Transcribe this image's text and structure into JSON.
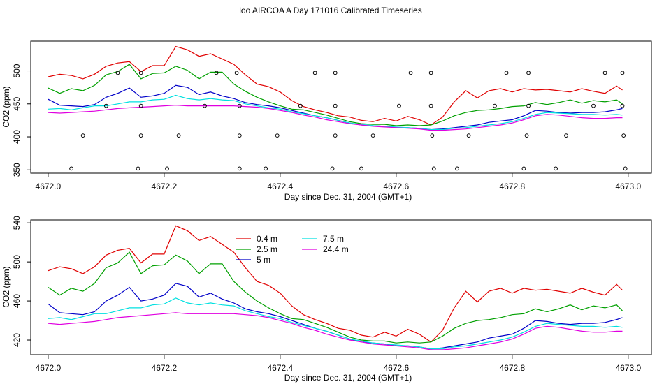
{
  "figure": {
    "title": "loo AIRCOA A  Day 171016  Calibrated Timeseries"
  },
  "colors": {
    "0.4 m": "#e00000",
    "2.5 m": "#00a000",
    "5 m": "#0000c8",
    "7.5 m": "#00e0e0",
    "24.4 m": "#e000e0",
    "markers": "#000000"
  },
  "chart_data": [
    {
      "type": "line",
      "xlabel": "Day since Dec. 31, 2004 (GMT+1)",
      "ylabel": "CO2 (ppm)",
      "xlim": [
        4671.97,
        4673.04
      ],
      "ylim": [
        345,
        545
      ],
      "xticks": [
        4672.0,
        4672.2,
        4672.4,
        4672.6,
        4672.8,
        4673.0
      ],
      "xtick_labels": [
        "4672.0",
        "4672.2",
        "4672.4",
        "4672.6",
        "4672.8",
        "4673.0"
      ],
      "yticks": [
        350,
        400,
        450,
        500
      ],
      "ytick_labels": [
        "350",
        "400",
        "450",
        "500"
      ],
      "legend": "none",
      "markers": {
        "name": "open circles",
        "points": [
          [
            4672.04,
            352
          ],
          [
            4672.06,
            402
          ],
          [
            4672.1,
            447
          ],
          [
            4672.12,
            497
          ],
          [
            4672.155,
            352
          ],
          [
            4672.16,
            402
          ],
          [
            4672.16,
            447
          ],
          [
            4672.16,
            497
          ],
          [
            4672.205,
            352
          ],
          [
            4672.225,
            402
          ],
          [
            4672.27,
            447
          ],
          [
            4672.29,
            497
          ],
          [
            4672.325,
            497
          ],
          [
            4672.33,
            352
          ],
          [
            4672.33,
            402
          ],
          [
            4672.33,
            447
          ],
          [
            4672.375,
            352
          ],
          [
            4672.395,
            402
          ],
          [
            4672.435,
            447
          ],
          [
            4672.46,
            497
          ],
          [
            4672.49,
            352
          ],
          [
            4672.495,
            402
          ],
          [
            4672.495,
            447
          ],
          [
            4672.495,
            497
          ],
          [
            4672.54,
            352
          ],
          [
            4672.56,
            402
          ],
          [
            4672.605,
            447
          ],
          [
            4672.625,
            497
          ],
          [
            4672.66,
            497
          ],
          [
            4672.66,
            447
          ],
          [
            4672.662,
            402
          ],
          [
            4672.665,
            352
          ],
          [
            4672.705,
            352
          ],
          [
            4672.725,
            402
          ],
          [
            4672.77,
            447
          ],
          [
            4672.79,
            497
          ],
          [
            4672.82,
            352
          ],
          [
            4672.825,
            402
          ],
          [
            4672.828,
            447
          ],
          [
            4672.828,
            497
          ],
          [
            4672.875,
            352
          ],
          [
            4672.893,
            402
          ],
          [
            4672.94,
            447
          ],
          [
            4672.96,
            497
          ],
          [
            4672.99,
            497
          ],
          [
            4672.99,
            447
          ],
          [
            4672.992,
            402
          ],
          [
            4672.995,
            352
          ]
        ]
      }
    },
    {
      "type": "line",
      "xlabel": "Day since Dec. 31, 2004 (GMT+1)",
      "ylabel": "CO2 (ppm)",
      "xlim": [
        4671.97,
        4673.04
      ],
      "ylim": [
        405,
        543
      ],
      "xticks": [
        4672.0,
        4672.2,
        4672.4,
        4672.6,
        4672.8,
        4673.0
      ],
      "xtick_labels": [
        "4672.0",
        "4672.2",
        "4672.4",
        "4672.6",
        "4672.8",
        "4673.0"
      ],
      "yticks": [
        420,
        460,
        500,
        540
      ],
      "ytick_labels": [
        "420",
        "460",
        "500",
        "540"
      ],
      "legend": "top-left",
      "legend_entries": [
        "0.4 m",
        "2.5 m",
        "5 m",
        "7.5 m",
        "24.4 m"
      ]
    }
  ],
  "series_data": [
    {
      "name": "0.4 m",
      "points": [
        [
          4672.0,
          491
        ],
        [
          4672.02,
          495
        ],
        [
          4672.04,
          493
        ],
        [
          4672.06,
          488
        ],
        [
          4672.08,
          495
        ],
        [
          4672.1,
          507
        ],
        [
          4672.12,
          512
        ],
        [
          4672.14,
          514
        ],
        [
          4672.16,
          499
        ],
        [
          4672.18,
          508
        ],
        [
          4672.2,
          508
        ],
        [
          4672.22,
          537
        ],
        [
          4672.24,
          532
        ],
        [
          4672.26,
          522
        ],
        [
          4672.28,
          526
        ],
        [
          4672.3,
          518
        ],
        [
          4672.32,
          510
        ],
        [
          4672.34,
          494
        ],
        [
          4672.36,
          480
        ],
        [
          4672.38,
          476
        ],
        [
          4672.4,
          468
        ],
        [
          4672.42,
          455
        ],
        [
          4672.44,
          446
        ],
        [
          4672.46,
          441
        ],
        [
          4672.48,
          437
        ],
        [
          4672.5,
          432
        ],
        [
          4672.52,
          430
        ],
        [
          4672.54,
          425
        ],
        [
          4672.56,
          423
        ],
        [
          4672.58,
          428
        ],
        [
          4672.6,
          424
        ],
        [
          4672.62,
          431
        ],
        [
          4672.64,
          426
        ],
        [
          4672.66,
          418
        ],
        [
          4672.68,
          430
        ],
        [
          4672.7,
          453
        ],
        [
          4672.72,
          470
        ],
        [
          4672.74,
          459
        ],
        [
          4672.76,
          470
        ],
        [
          4672.78,
          473
        ],
        [
          4672.8,
          468
        ],
        [
          4672.82,
          473
        ],
        [
          4672.84,
          471
        ],
        [
          4672.86,
          472
        ],
        [
          4672.88,
          470
        ],
        [
          4672.9,
          468
        ],
        [
          4672.92,
          473
        ],
        [
          4672.94,
          469
        ],
        [
          4672.96,
          466
        ],
        [
          4672.98,
          477
        ],
        [
          4672.99,
          471
        ]
      ]
    },
    {
      "name": "2.5 m",
      "points": [
        [
          4672.0,
          474
        ],
        [
          4672.02,
          466
        ],
        [
          4672.04,
          473
        ],
        [
          4672.06,
          470
        ],
        [
          4672.08,
          478
        ],
        [
          4672.1,
          494
        ],
        [
          4672.12,
          499
        ],
        [
          4672.14,
          510
        ],
        [
          4672.16,
          488
        ],
        [
          4672.18,
          496
        ],
        [
          4672.2,
          497
        ],
        [
          4672.22,
          507
        ],
        [
          4672.24,
          501
        ],
        [
          4672.26,
          488
        ],
        [
          4672.28,
          498
        ],
        [
          4672.3,
          498
        ],
        [
          4672.32,
          480
        ],
        [
          4672.34,
          469
        ],
        [
          4672.36,
          460
        ],
        [
          4672.38,
          453
        ],
        [
          4672.4,
          447
        ],
        [
          4672.42,
          442
        ],
        [
          4672.44,
          441
        ],
        [
          4672.46,
          437
        ],
        [
          4672.48,
          433
        ],
        [
          4672.5,
          428
        ],
        [
          4672.52,
          423
        ],
        [
          4672.54,
          420
        ],
        [
          4672.56,
          419
        ],
        [
          4672.58,
          419
        ],
        [
          4672.6,
          417
        ],
        [
          4672.62,
          418
        ],
        [
          4672.64,
          417
        ],
        [
          4672.66,
          418
        ],
        [
          4672.68,
          424
        ],
        [
          4672.7,
          432
        ],
        [
          4672.72,
          437
        ],
        [
          4672.74,
          440
        ],
        [
          4672.76,
          441
        ],
        [
          4672.78,
          443
        ],
        [
          4672.8,
          446
        ],
        [
          4672.82,
          447
        ],
        [
          4672.84,
          452
        ],
        [
          4672.86,
          449
        ],
        [
          4672.88,
          452
        ],
        [
          4672.9,
          456
        ],
        [
          4672.92,
          451
        ],
        [
          4672.94,
          455
        ],
        [
          4672.96,
          453
        ],
        [
          4672.98,
          456
        ],
        [
          4672.99,
          450
        ]
      ]
    },
    {
      "name": "5 m",
      "points": [
        [
          4672.0,
          457
        ],
        [
          4672.02,
          448
        ],
        [
          4672.04,
          447
        ],
        [
          4672.06,
          446
        ],
        [
          4672.08,
          449
        ],
        [
          4672.1,
          460
        ],
        [
          4672.12,
          466
        ],
        [
          4672.14,
          474
        ],
        [
          4672.16,
          460
        ],
        [
          4672.18,
          462
        ],
        [
          4672.2,
          466
        ],
        [
          4672.22,
          478
        ],
        [
          4672.24,
          475
        ],
        [
          4672.26,
          464
        ],
        [
          4672.28,
          468
        ],
        [
          4672.3,
          462
        ],
        [
          4672.32,
          458
        ],
        [
          4672.34,
          452
        ],
        [
          4672.36,
          449
        ],
        [
          4672.38,
          447
        ],
        [
          4672.4,
          444
        ],
        [
          4672.42,
          440
        ],
        [
          4672.44,
          436
        ],
        [
          4672.46,
          432
        ],
        [
          4672.48,
          429
        ],
        [
          4672.5,
          425
        ],
        [
          4672.52,
          421
        ],
        [
          4672.54,
          418
        ],
        [
          4672.56,
          417
        ],
        [
          4672.58,
          416
        ],
        [
          4672.6,
          414
        ],
        [
          4672.62,
          414
        ],
        [
          4672.64,
          413
        ],
        [
          4672.66,
          411
        ],
        [
          4672.68,
          412
        ],
        [
          4672.7,
          414
        ],
        [
          4672.72,
          416
        ],
        [
          4672.74,
          418
        ],
        [
          4672.76,
          422
        ],
        [
          4672.78,
          424
        ],
        [
          4672.8,
          426
        ],
        [
          4672.82,
          432
        ],
        [
          4672.84,
          440
        ],
        [
          4672.86,
          439
        ],
        [
          4672.88,
          437
        ],
        [
          4672.9,
          436
        ],
        [
          4672.92,
          437
        ],
        [
          4672.94,
          437
        ],
        [
          4672.96,
          438
        ],
        [
          4672.98,
          441
        ],
        [
          4672.99,
          443
        ]
      ]
    },
    {
      "name": "7.5 m",
      "points": [
        [
          4672.0,
          442
        ],
        [
          4672.02,
          443
        ],
        [
          4672.04,
          441
        ],
        [
          4672.06,
          444
        ],
        [
          4672.08,
          447
        ],
        [
          4672.1,
          447
        ],
        [
          4672.12,
          450
        ],
        [
          4672.14,
          453
        ],
        [
          4672.16,
          453
        ],
        [
          4672.18,
          456
        ],
        [
          4672.2,
          457
        ],
        [
          4672.22,
          463
        ],
        [
          4672.24,
          458
        ],
        [
          4672.26,
          456
        ],
        [
          4672.28,
          458
        ],
        [
          4672.3,
          456
        ],
        [
          4672.32,
          455
        ],
        [
          4672.34,
          450
        ],
        [
          4672.36,
          447
        ],
        [
          4672.38,
          444
        ],
        [
          4672.4,
          442
        ],
        [
          4672.42,
          438
        ],
        [
          4672.44,
          435
        ],
        [
          4672.46,
          432
        ],
        [
          4672.48,
          429
        ],
        [
          4672.5,
          425
        ],
        [
          4672.52,
          421
        ],
        [
          4672.54,
          419
        ],
        [
          4672.56,
          417
        ],
        [
          4672.58,
          416
        ],
        [
          4672.6,
          415
        ],
        [
          4672.62,
          414
        ],
        [
          4672.64,
          413
        ],
        [
          4672.66,
          411
        ],
        [
          4672.68,
          411
        ],
        [
          4672.7,
          413
        ],
        [
          4672.72,
          414
        ],
        [
          4672.74,
          416
        ],
        [
          4672.76,
          418
        ],
        [
          4672.78,
          420
        ],
        [
          4672.8,
          423
        ],
        [
          4672.82,
          428
        ],
        [
          4672.84,
          434
        ],
        [
          4672.86,
          437
        ],
        [
          4672.88,
          436
        ],
        [
          4672.9,
          435
        ],
        [
          4672.92,
          434
        ],
        [
          4672.94,
          434
        ],
        [
          4672.96,
          433
        ],
        [
          4672.98,
          434
        ],
        [
          4672.99,
          433
        ]
      ]
    },
    {
      "name": "24.4 m",
      "points": [
        [
          4672.0,
          437
        ],
        [
          4672.02,
          436
        ],
        [
          4672.04,
          437
        ],
        [
          4672.06,
          438
        ],
        [
          4672.08,
          439
        ],
        [
          4672.1,
          441
        ],
        [
          4672.12,
          443
        ],
        [
          4672.14,
          444
        ],
        [
          4672.16,
          445
        ],
        [
          4672.18,
          446
        ],
        [
          4672.2,
          447
        ],
        [
          4672.22,
          448
        ],
        [
          4672.24,
          447
        ],
        [
          4672.26,
          447
        ],
        [
          4672.28,
          447
        ],
        [
          4672.3,
          447
        ],
        [
          4672.32,
          447
        ],
        [
          4672.34,
          446
        ],
        [
          4672.36,
          445
        ],
        [
          4672.38,
          443
        ],
        [
          4672.4,
          440
        ],
        [
          4672.42,
          437
        ],
        [
          4672.44,
          433
        ],
        [
          4672.46,
          430
        ],
        [
          4672.48,
          426
        ],
        [
          4672.5,
          423
        ],
        [
          4672.52,
          420
        ],
        [
          4672.54,
          418
        ],
        [
          4672.56,
          416
        ],
        [
          4672.58,
          415
        ],
        [
          4672.6,
          414
        ],
        [
          4672.62,
          413
        ],
        [
          4672.64,
          412
        ],
        [
          4672.66,
          410
        ],
        [
          4672.68,
          410
        ],
        [
          4672.7,
          411
        ],
        [
          4672.72,
          412
        ],
        [
          4672.74,
          414
        ],
        [
          4672.76,
          416
        ],
        [
          4672.78,
          418
        ],
        [
          4672.8,
          421
        ],
        [
          4672.82,
          426
        ],
        [
          4672.84,
          432
        ],
        [
          4672.86,
          434
        ],
        [
          4672.88,
          433
        ],
        [
          4672.9,
          431
        ],
        [
          4672.92,
          429
        ],
        [
          4672.94,
          428
        ],
        [
          4672.96,
          428
        ],
        [
          4672.98,
          429
        ],
        [
          4672.99,
          429
        ]
      ]
    }
  ]
}
